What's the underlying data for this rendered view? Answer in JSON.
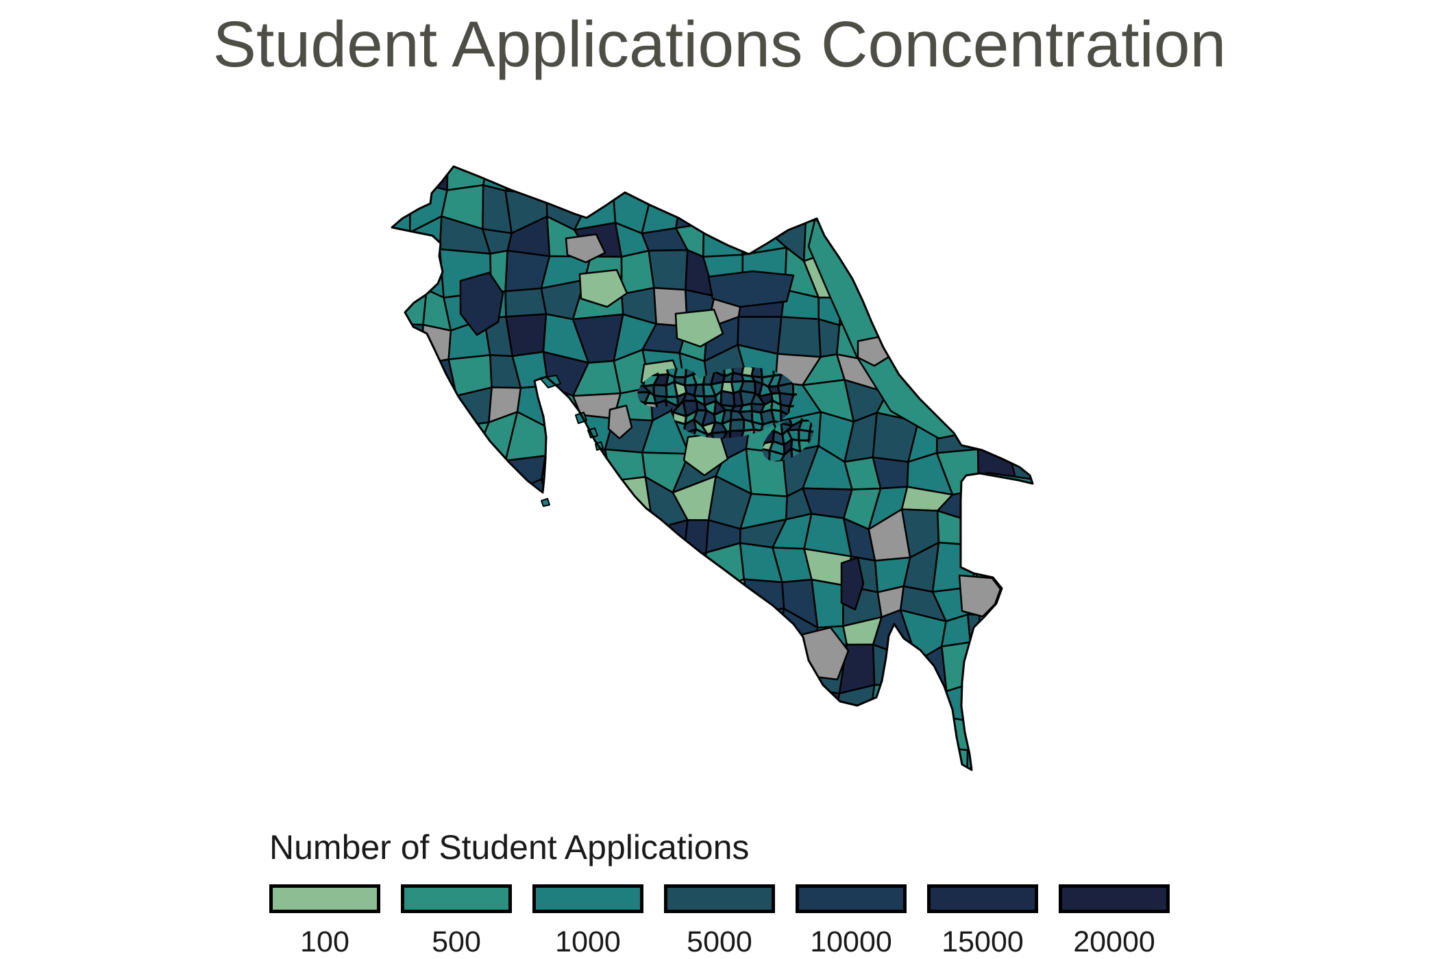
{
  "title": "Student Applications Concentration",
  "legend": {
    "title": "Number of Student Applications",
    "entries": [
      {
        "label": "100",
        "color": "#8dbe93"
      },
      {
        "label": "500",
        "color": "#2b9080"
      },
      {
        "label": "1000",
        "color": "#1f7f7e"
      },
      {
        "label": "5000",
        "color": "#1f4f5f"
      },
      {
        "label": "10000",
        "color": "#1c3a55"
      },
      {
        "label": "15000",
        "color": "#1b2c4a"
      },
      {
        "label": "20000",
        "color": "#1a2240"
      }
    ],
    "na_color": "#969696",
    "border_color": "#000000"
  },
  "map": {
    "region": "Costa Rica",
    "background": "#ffffff",
    "title_color": "#4e4e46"
  },
  "chart_data": {
    "type": "choropleth",
    "region": "Costa Rica, district level",
    "title": "Student Applications Concentration",
    "legend_title": "Number of Student Applications",
    "scale_breaks": [
      100,
      500,
      1000,
      5000,
      10000,
      15000,
      20000
    ],
    "palette": [
      "#8dbe93",
      "#2b9080",
      "#1f7f7e",
      "#1f4f5f",
      "#1c3a55",
      "#1b2c4a",
      "#1a2240"
    ],
    "na_color": "#969696",
    "encoding": "district fill color encodes number of student applications; gray districts have no data; dense dark cluster of small districts around the San José metropolitan area"
  }
}
